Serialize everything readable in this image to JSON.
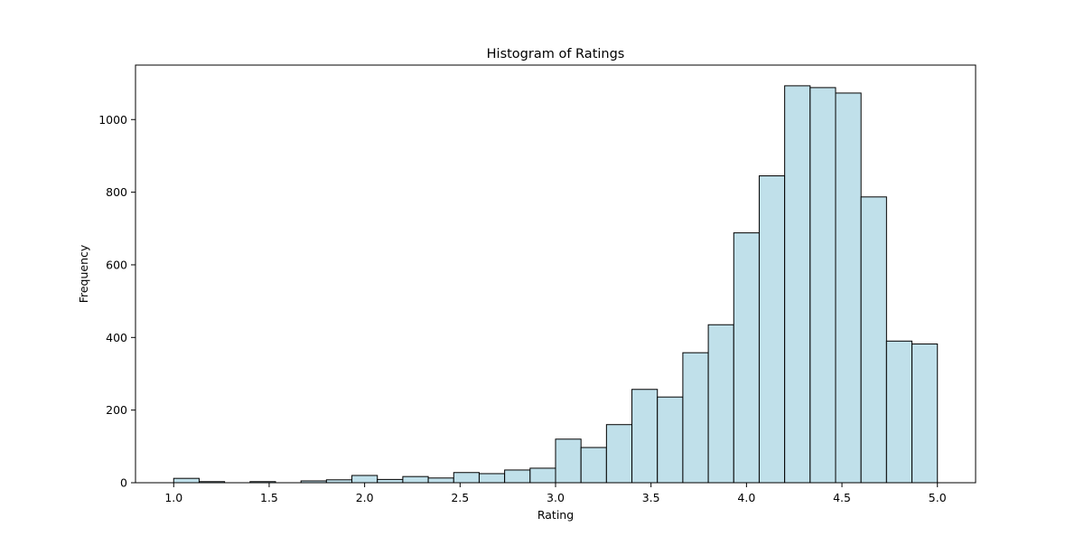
{
  "chart_data": {
    "type": "bar",
    "title": "Histogram of Ratings",
    "xlabel": "Rating",
    "ylabel": "Frequency",
    "xlim": [
      0.8,
      5.2
    ],
    "ylim": [
      0,
      1150
    ],
    "xticks": [
      "1.0",
      "1.5",
      "2.0",
      "2.5",
      "3.0",
      "3.5",
      "4.0",
      "4.5",
      "5.0"
    ],
    "yticks": [
      "0",
      "200",
      "400",
      "600",
      "800",
      "1000"
    ],
    "bin_range": [
      1.0,
      5.0
    ],
    "bin_count": 30,
    "values": [
      12,
      3,
      0,
      3,
      0,
      5,
      8,
      20,
      9,
      17,
      13,
      28,
      25,
      35,
      40,
      120,
      97,
      160,
      257,
      236,
      358,
      435,
      688,
      845,
      1093,
      1088,
      1073,
      787,
      390,
      382
    ],
    "colors": {
      "bar_fill": "#c0e0ea",
      "bar_edge": "#000000",
      "axes": "#000000",
      "background": "#ffffff"
    },
    "grid": false,
    "legend": "none"
  }
}
